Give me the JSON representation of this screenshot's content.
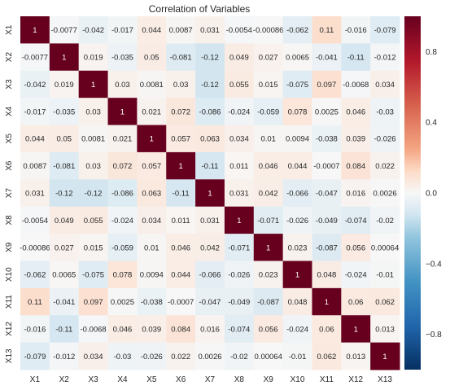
{
  "chart_data": {
    "type": "heatmap",
    "title": "Correlation of Variables",
    "xlabel": "",
    "ylabel": "",
    "colormap": "RdBu_r",
    "vmin": -1,
    "vmax": 1,
    "colorbar_ticks": [
      {
        "value": 0.8,
        "label": "0.8"
      },
      {
        "value": 0.4,
        "label": "0.4"
      },
      {
        "value": 0.0,
        "label": "0.0"
      },
      {
        "value": -0.4,
        "label": "−0.4"
      },
      {
        "value": -0.8,
        "label": "−0.8"
      }
    ],
    "variables": [
      "X1",
      "X2",
      "X3",
      "X4",
      "X5",
      "X6",
      "X7",
      "X8",
      "X9",
      "X10",
      "X11",
      "X12",
      "X13"
    ],
    "labels": [
      [
        "1",
        "-0.0077",
        "-0.042",
        "-0.017",
        "0.044",
        "0.0087",
        "0.031",
        "-0.0054",
        "-0.00086",
        "-0.062",
        "0.11",
        "-0.016",
        "-0.079"
      ],
      [
        "-0.0077",
        "1",
        "0.019",
        "-0.035",
        "0.05",
        "-0.081",
        "-0.12",
        "0.049",
        "0.027",
        "0.0065",
        "-0.041",
        "-0.11",
        "-0.012"
      ],
      [
        "-0.042",
        "0.019",
        "1",
        "0.03",
        "0.0081",
        "0.03",
        "-0.12",
        "0.055",
        "0.015",
        "-0.075",
        "0.097",
        "-0.0068",
        "0.034"
      ],
      [
        "-0.017",
        "-0.035",
        "0.03",
        "1",
        "0.021",
        "0.072",
        "-0.086",
        "-0.024",
        "-0.059",
        "0.078",
        "0.0025",
        "0.046",
        "-0.03"
      ],
      [
        "0.044",
        "0.05",
        "0.0081",
        "0.021",
        "1",
        "0.057",
        "0.063",
        "0.034",
        "0.01",
        "0.0094",
        "-0.038",
        "0.039",
        "-0.026"
      ],
      [
        "0.0087",
        "-0.081",
        "0.03",
        "0.072",
        "0.057",
        "1",
        "-0.11",
        "0.011",
        "0.046",
        "0.044",
        "-0.0007",
        "0.084",
        "0.022"
      ],
      [
        "0.031",
        "-0.12",
        "-0.12",
        "-0.086",
        "0.063",
        "-0.11",
        "1",
        "0.031",
        "0.042",
        "-0.066",
        "-0.047",
        "0.016",
        "0.0026"
      ],
      [
        "-0.0054",
        "0.049",
        "0.055",
        "-0.024",
        "0.034",
        "0.011",
        "0.031",
        "1",
        "-0.071",
        "-0.026",
        "-0.049",
        "-0.074",
        "-0.02"
      ],
      [
        "-0.00086",
        "0.027",
        "0.015",
        "-0.059",
        "0.01",
        "0.046",
        "0.042",
        "-0.071",
        "1",
        "0.023",
        "-0.087",
        "0.056",
        "0.00064"
      ],
      [
        "-0.062",
        "0.0065",
        "-0.075",
        "0.078",
        "0.0094",
        "0.044",
        "-0.066",
        "-0.026",
        "0.023",
        "1",
        "0.048",
        "-0.024",
        "-0.01"
      ],
      [
        "0.11",
        "-0.041",
        "0.097",
        "0.0025",
        "-0.038",
        "-0.0007",
        "-0.047",
        "-0.049",
        "-0.087",
        "0.048",
        "1",
        "0.06",
        "0.062"
      ],
      [
        "-0.016",
        "-0.11",
        "-0.0068",
        "0.046",
        "0.039",
        "0.084",
        "0.016",
        "-0.074",
        "0.056",
        "-0.024",
        "0.06",
        "1",
        "0.013"
      ],
      [
        "-0.079",
        "-0.012",
        "0.034",
        "-0.03",
        "-0.026",
        "0.022",
        "0.0026",
        "-0.02",
        "0.00064",
        "-0.01",
        "0.062",
        "0.013",
        "1"
      ]
    ]
  }
}
